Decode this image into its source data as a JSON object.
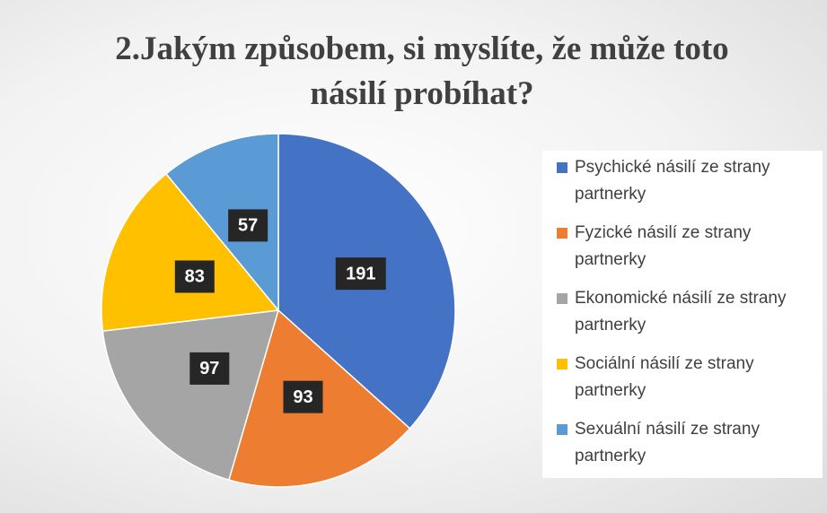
{
  "chart_data": {
    "type": "pie",
    "title": "2.Jakým způsobem, si myslíte, že může toto násilí probíhat?",
    "categories": [
      "Psychické násilí ze strany partnerky",
      "Fyzické násilí ze strany partnerky",
      "Ekonomické násilí ze strany partnerky",
      "Sociální násilí ze strany partnerky",
      "Sexuální násilí ze strany partnerky"
    ],
    "values": [
      191,
      93,
      97,
      83,
      57
    ],
    "colors": [
      "#4472c4",
      "#ed7d31",
      "#a5a5a5",
      "#ffc000",
      "#5b9bd5"
    ],
    "legend": "right"
  }
}
